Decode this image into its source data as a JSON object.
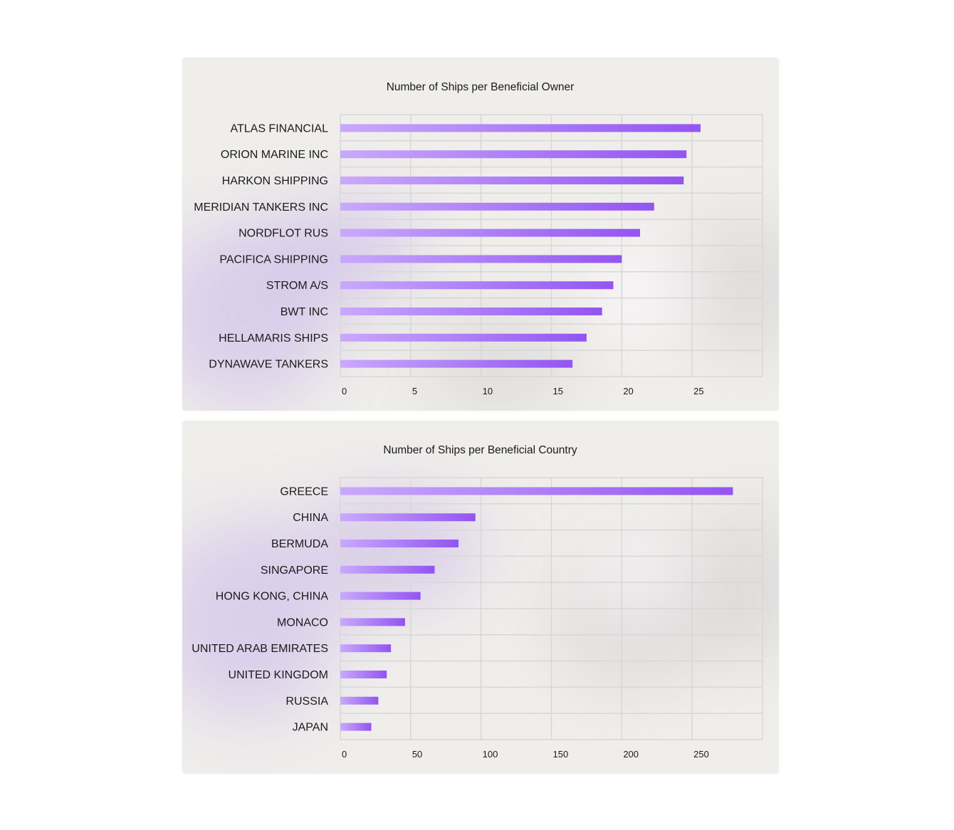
{
  "bar_color_start": "#c9a9fb",
  "bar_color_end": "#9354f2",
  "chart_data": [
    {
      "type": "bar",
      "orientation": "horizontal",
      "title": "Number of Ships per Beneficial Owner",
      "categories": [
        "ATLAS FINANCIAL",
        "ORION MARINE INC",
        "HARKON SHIPPING",
        "MERIDIAN TANKERS INC",
        "NORDFLOT RUS",
        "PACIFICA SHIPPING",
        "STROM A/S",
        "BWT INC",
        "HELLAMARIS SHIPS",
        "DYNAWAVE TANKERS"
      ],
      "values": [
        25.6,
        24.6,
        24.4,
        22.3,
        21.3,
        20.0,
        19.4,
        18.6,
        17.5,
        16.5
      ],
      "xticks": [
        "0",
        "5",
        "10",
        "15",
        "20",
        "25"
      ],
      "xtick_values": [
        0,
        5,
        10,
        15,
        20,
        25
      ],
      "xlim": [
        0,
        30
      ],
      "grid": true
    },
    {
      "type": "bar",
      "orientation": "horizontal",
      "title": "Number of Ships per Beneficial Country",
      "categories": [
        "GREECE",
        "CHINA",
        "BERMUDA",
        "SINGAPORE",
        "HONG KONG, CHINA",
        "MONACO",
        "UNITED ARAB EMIRATES",
        "UNITED KINGDOM",
        "RUSSIA",
        "JAPAN"
      ],
      "values": [
        279,
        96,
        84,
        67,
        57,
        46,
        36,
        33,
        27,
        22
      ],
      "xticks": [
        "0",
        "50",
        "100",
        "150",
        "200",
        "250"
      ],
      "xtick_values": [
        0,
        50,
        100,
        150,
        200,
        250
      ],
      "xlim": [
        0,
        300
      ],
      "grid": true
    }
  ]
}
